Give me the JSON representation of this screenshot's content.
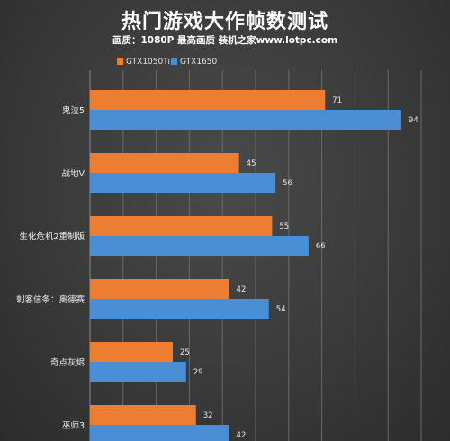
{
  "title": "热门游戏大作帧数测试",
  "subtitle": "画质：1080P 最高画质 装机之家www.lotpc.com",
  "chart_data": {
    "type": "bar",
    "orientation": "horizontal",
    "categories": [
      "鬼泣5",
      "战地V",
      "生化危机2重制版",
      "刺客信条：奥德赛",
      "奇点灰烬",
      "巫师3"
    ],
    "series": [
      {
        "name": "GTX1050Ti",
        "color": "#ed7d31",
        "values": [
          71,
          45,
          55,
          42,
          25,
          32
        ]
      },
      {
        "name": "GTX1650",
        "color": "#4a8fd6",
        "values": [
          94,
          56,
          66,
          54,
          29,
          42
        ]
      }
    ],
    "xlim": [
      0,
      100
    ],
    "grid": true,
    "data_labels": true,
    "legend_position": "top-left"
  }
}
